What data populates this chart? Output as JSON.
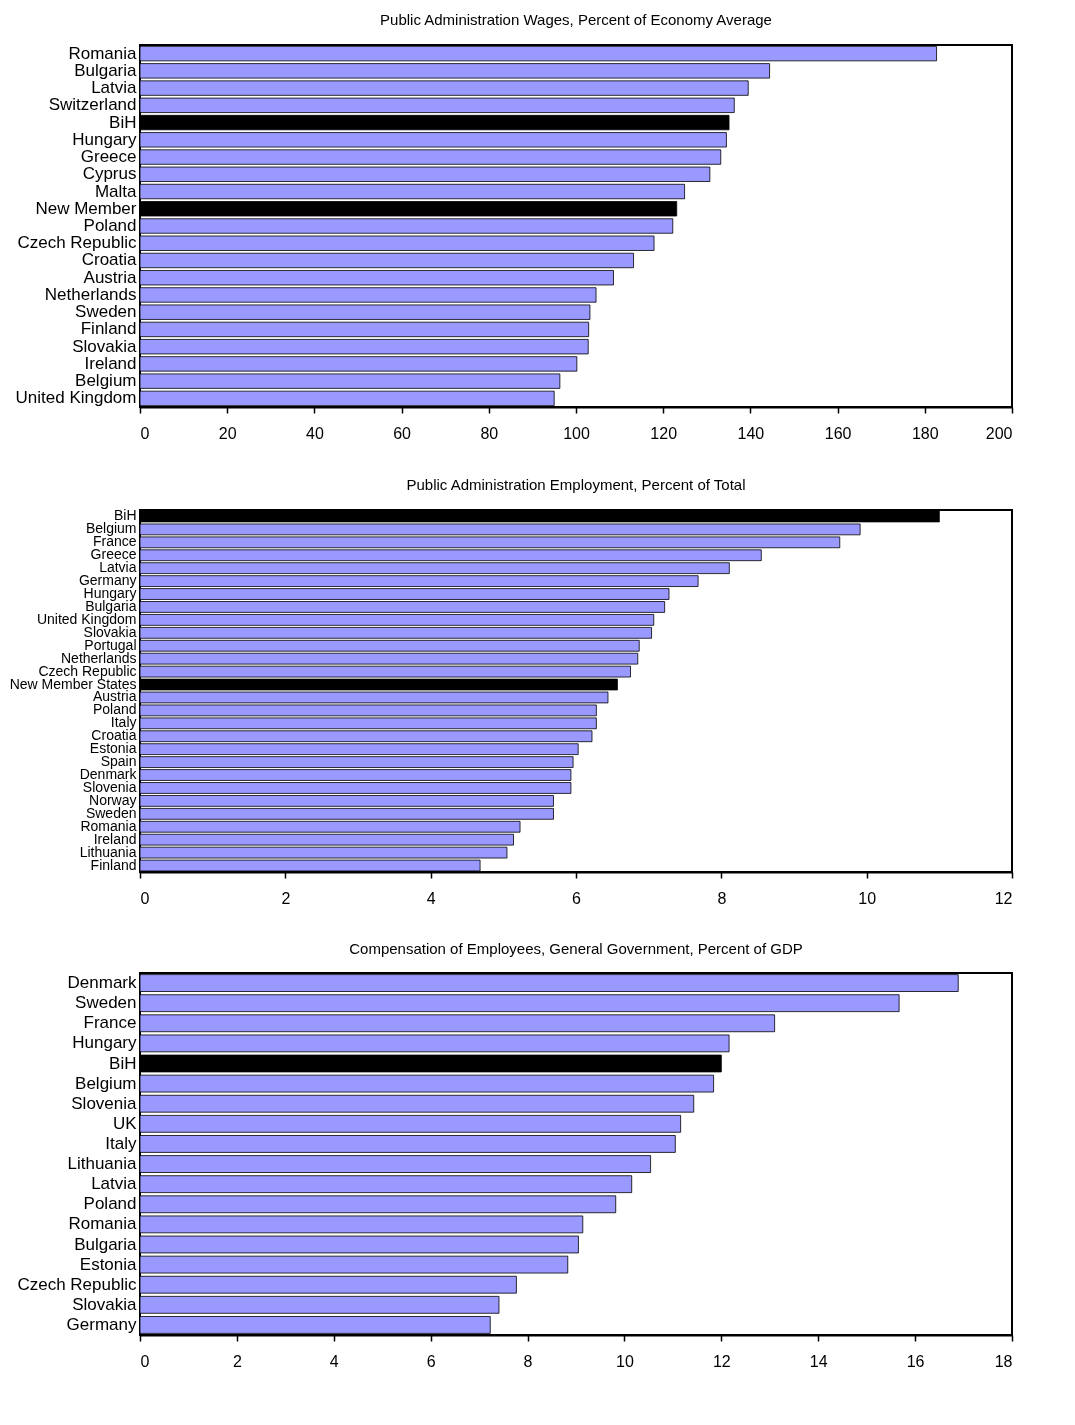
{
  "chart_data": [
    {
      "type": "bar",
      "orientation": "horizontal",
      "title": "Public Administration Wages, Percent of Economy Average",
      "categories": [
        "Romania",
        "Bulgaria",
        "Latvia",
        "Switzerland",
        "BiH",
        "Hungary",
        "Greece",
        "Cyprus",
        "Malta",
        "New Member",
        "Poland",
        "Czech Republic",
        "Croatia",
        "Austria",
        "Netherlands",
        "Sweden",
        "Finland",
        "Slovakia",
        "Ireland",
        "Belgium",
        "United Kingdom"
      ],
      "values": [
        182.7,
        144.4,
        139.5,
        136.3,
        135.1,
        134.5,
        133.2,
        130.7,
        124.9,
        123.1,
        122.2,
        117.9,
        113.2,
        108.6,
        104.6,
        103.2,
        102.9,
        102.8,
        100.2,
        96.3,
        95.0
      ],
      "colors": [
        "#9999ff",
        "#9999ff",
        "#9999ff",
        "#9999ff",
        "#000000",
        "#9999ff",
        "#9999ff",
        "#9999ff",
        "#9999ff",
        "#000000",
        "#9999ff",
        "#9999ff",
        "#9999ff",
        "#9999ff",
        "#9999ff",
        "#9999ff",
        "#9999ff",
        "#9999ff",
        "#9999ff",
        "#9999ff",
        "#9999ff"
      ],
      "xlim": [
        0,
        200
      ],
      "xticks": [
        0,
        20,
        40,
        60,
        80,
        100,
        120,
        140,
        160,
        180,
        200
      ],
      "grid": false
    },
    {
      "type": "bar",
      "orientation": "horizontal",
      "title": "Public Administration Employment, Percent of Total",
      "categories": [
        "BiH",
        "Belgium",
        "France",
        "Greece",
        "Latvia",
        "Germany",
        "Hungary",
        "Bulgaria",
        "United Kingdom",
        "Slovakia",
        "Portugal",
        "Netherlands",
        "Czech Republic",
        "New Member States",
        "Austria",
        "Poland",
        "Italy",
        "Croatia",
        "Estonia",
        "Spain",
        "Denmark",
        "Slovenia",
        "Norway",
        "Sweden",
        "Romania",
        "Ireland",
        "Lithuania",
        "Finland"
      ],
      "values": [
        11.0,
        9.91,
        9.63,
        8.55,
        8.11,
        7.68,
        7.28,
        7.22,
        7.07,
        7.04,
        6.87,
        6.85,
        6.75,
        6.57,
        6.44,
        6.28,
        6.28,
        6.22,
        6.03,
        5.96,
        5.93,
        5.93,
        5.69,
        5.69,
        5.23,
        5.14,
        5.05,
        4.68
      ],
      "colors": [
        "#000000",
        "#9999ff",
        "#9999ff",
        "#9999ff",
        "#9999ff",
        "#9999ff",
        "#9999ff",
        "#9999ff",
        "#9999ff",
        "#9999ff",
        "#9999ff",
        "#9999ff",
        "#9999ff",
        "#000000",
        "#9999ff",
        "#9999ff",
        "#9999ff",
        "#9999ff",
        "#9999ff",
        "#9999ff",
        "#9999ff",
        "#9999ff",
        "#9999ff",
        "#9999ff",
        "#9999ff",
        "#9999ff",
        "#9999ff",
        "#9999ff"
      ],
      "xlim": [
        0,
        12
      ],
      "xticks": [
        0,
        2,
        4,
        6,
        8,
        10,
        12
      ],
      "grid": false
    },
    {
      "type": "bar",
      "orientation": "horizontal",
      "title": "Compensation of Employees, General Government, Percent of GDP",
      "categories": [
        "Denmark",
        "Sweden",
        "France",
        "Hungary",
        "BiH",
        "Belgium",
        "Slovenia",
        "UK",
        "Italy",
        "Lithuania",
        "Latvia",
        "Poland",
        "Romania",
        "Bulgaria",
        "Estonia",
        "Czech Republic",
        "Slovakia",
        "Germany"
      ],
      "values": [
        16.89,
        15.67,
        13.1,
        12.16,
        12.0,
        11.84,
        11.43,
        11.16,
        11.05,
        10.54,
        10.15,
        9.82,
        9.14,
        9.05,
        8.83,
        7.77,
        7.41,
        7.23
      ],
      "colors": [
        "#9999ff",
        "#9999ff",
        "#9999ff",
        "#9999ff",
        "#000000",
        "#9999ff",
        "#9999ff",
        "#9999ff",
        "#9999ff",
        "#9999ff",
        "#9999ff",
        "#9999ff",
        "#9999ff",
        "#9999ff",
        "#9999ff",
        "#9999ff",
        "#9999ff",
        "#9999ff"
      ],
      "xlim": [
        0,
        18
      ],
      "xticks": [
        0,
        2,
        4,
        6,
        8,
        10,
        12,
        14,
        16,
        18
      ],
      "grid": false
    }
  ]
}
